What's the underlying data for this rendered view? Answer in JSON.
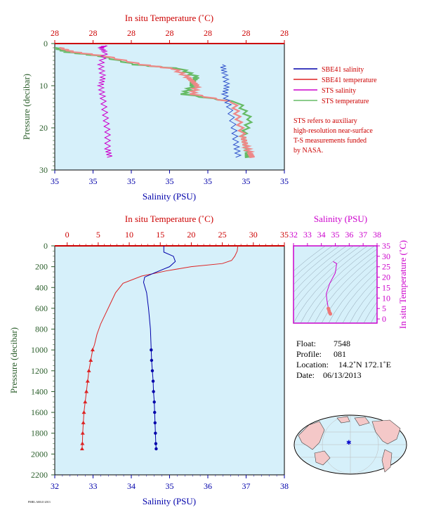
{
  "top_panel": {
    "temp_axis_title": "In situ Temperature (˚C)",
    "temp_ticks": [
      "28",
      "28",
      "28",
      "28",
      "28",
      "28",
      "28"
    ],
    "sal_axis_title": "Salinity (PSU)",
    "sal_ticks": [
      "35",
      "35",
      "35",
      "35",
      "35",
      "35",
      "35"
    ],
    "press_axis_title": "Pressure (decibar)",
    "press_ticks": [
      "0",
      "10",
      "20",
      "30"
    ]
  },
  "legend": {
    "entries": [
      {
        "label": "SBE41 salinity",
        "color": "#0000aa"
      },
      {
        "label": "SBE41 temperature",
        "color": "#cc0000"
      },
      {
        "label": "STS salinity",
        "color": "#cc00cc"
      },
      {
        "label": "STS temperature",
        "color": "#66bb66"
      }
    ],
    "note_lines": [
      "STS refers to auxiliary",
      "high-resolution near-surface",
      "T-S measurements funded",
      "by NASA."
    ]
  },
  "main_panel": {
    "temp_axis_title": "In situ Temperature (˚C)",
    "temp_ticks": [
      "0",
      "5",
      "10",
      "15",
      "20",
      "25",
      "30",
      "35"
    ],
    "sal_axis_title": "Salinity (PSU)",
    "sal_ticks": [
      "32",
      "33",
      "34",
      "35",
      "36",
      "37",
      "38"
    ],
    "press_axis_title": "Pressure (decibar)",
    "press_ticks": [
      "0",
      "200",
      "400",
      "600",
      "800",
      "1000",
      "1200",
      "1400",
      "1600",
      "1800",
      "2000",
      "2200"
    ]
  },
  "ts_panel": {
    "sal_axis_title": "Salinity (PSU)",
    "sal_ticks": [
      "32",
      "33",
      "34",
      "35",
      "36",
      "37",
      "38"
    ],
    "temp_axis_title": "In situ Temperature (˚C)",
    "temp_ticks": [
      "0",
      "5",
      "10",
      "15",
      "20",
      "25",
      "30",
      "35"
    ]
  },
  "info": {
    "float_label": "Float:",
    "float_value": "7548",
    "profile_label": "Profile:",
    "profile_value": "081",
    "location_label": "Location:",
    "location_value": "14.2˚N  172.1˚E",
    "date_label": "Date:",
    "date_value": "06/13/2013"
  },
  "footer_note": "PMEL ARGO 2013",
  "colors": {
    "panel_bg": "#d6f0fa",
    "sbe_sal": "#0000aa",
    "sbe_temp": "#dd2222",
    "sts_sal": "#cc00cc",
    "sts_temp": "#66bb66",
    "axis_red": "#cc0000",
    "axis_green": "#2b5e2b",
    "axis_mag": "#cc00cc"
  },
  "chart_data": [
    {
      "type": "line",
      "title": "",
      "y_axis": "Pressure (decibar)",
      "ylim": [
        30,
        0
      ],
      "x_axis_top": "In situ Temperature (˚C)",
      "x_axis_bottom": "Salinity (PSU)",
      "series": [
        {
          "name": "STS temperature",
          "x": [
            0.0,
            0.05,
            0.2,
            0.35,
            0.55,
            0.62,
            0.6,
            0.6,
            0.56,
            0.8,
            0.85,
            0.82,
            0.83,
            0.84,
            0.84
          ],
          "y": [
            1,
            2,
            3,
            5,
            6,
            8,
            9,
            10,
            12,
            14,
            18,
            22,
            24,
            26,
            27
          ]
        },
        {
          "name": "SBE41 temperature",
          "x": [
            0.02,
            0.08,
            0.22,
            0.38,
            0.52,
            0.58,
            0.6,
            0.62,
            0.6,
            0.78,
            0.8,
            0.82,
            0.83,
            0.85,
            0.86
          ],
          "y": [
            1,
            2,
            3,
            5,
            6,
            8,
            9,
            10,
            12,
            14,
            18,
            22,
            24,
            26,
            27
          ]
        },
        {
          "name": "STS salinity",
          "x": [
            0.22,
            0.2,
            0.22,
            0.2,
            0.21,
            0.2,
            0.21,
            0.22,
            0.23,
            0.23,
            0.24
          ],
          "y": [
            0.5,
            1,
            2,
            5,
            8,
            10,
            13,
            17,
            21,
            25,
            27
          ]
        },
        {
          "name": "SBE41 salinity",
          "x": [
            0.73,
            0.74,
            0.75,
            0.74,
            0.76,
            0.78,
            0.79,
            0.8
          ],
          "y": [
            5,
            7,
            10,
            12,
            15,
            20,
            24,
            27
          ]
        }
      ]
    },
    {
      "type": "line",
      "title": "",
      "y_axis": "Pressure (decibar)",
      "ylim": [
        2200,
        0
      ],
      "x_axis_top": "In situ Temperature (˚C)",
      "xlim_top": [
        -2,
        35
      ],
      "x_axis_bottom": "Salinity (PSU)",
      "xlim_bottom": [
        32,
        38
      ],
      "series": [
        {
          "name": "SBE41 temperature",
          "x": [
            27.5,
            27.4,
            27.0,
            26.5,
            25.0,
            20.0,
            16.0,
            12.0,
            9.0,
            7.8,
            7.0,
            6.2,
            5.4,
            4.8,
            4.4,
            4.1,
            3.8,
            3.5,
            3.3,
            3.1,
            2.9,
            2.7,
            2.6,
            2.5,
            2.45,
            2.4
          ],
          "y": [
            0,
            50,
            100,
            140,
            170,
            200,
            240,
            290,
            360,
            450,
            550,
            650,
            750,
            850,
            950,
            1000,
            1100,
            1200,
            1300,
            1400,
            1500,
            1600,
            1700,
            1800,
            1900,
            1950
          ]
        },
        {
          "name": "SBE41 salinity",
          "x": [
            34.85,
            34.85,
            35.1,
            35.15,
            35.0,
            34.6,
            34.35,
            34.32,
            34.4,
            34.45,
            34.5,
            34.52,
            34.53,
            34.55,
            34.57,
            34.58,
            34.6,
            34.61,
            34.62,
            34.63,
            34.64,
            34.65
          ],
          "y": [
            0,
            60,
            100,
            150,
            200,
            260,
            300,
            350,
            450,
            600,
            800,
            1000,
            1100,
            1200,
            1300,
            1400,
            1500,
            1600,
            1700,
            1800,
            1900,
            1950
          ]
        }
      ]
    },
    {
      "type": "scatter",
      "title": "",
      "x_axis": "Salinity (PSU)",
      "xlim": [
        32,
        38
      ],
      "y_axis": "In situ Temperature (˚C)",
      "ylim": [
        -2,
        35
      ],
      "series": [
        {
          "name": "T-S profile",
          "x": [
            34.85,
            35.1,
            35.0,
            34.6,
            34.35,
            34.4,
            34.45,
            34.5,
            34.55,
            34.6,
            34.65
          ],
          "y": [
            27.5,
            26.5,
            22.0,
            17.0,
            12.0,
            9.0,
            7.0,
            5.0,
            4.0,
            3.0,
            2.4
          ]
        }
      ]
    }
  ]
}
